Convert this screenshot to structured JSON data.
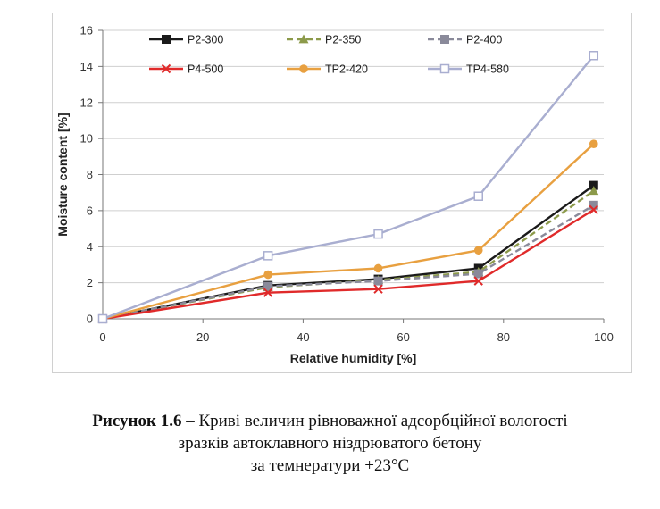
{
  "chart_data": {
    "type": "line",
    "xlabel": "Relative humidity [%]",
    "ylabel": "Moisture content [%]",
    "xlim": [
      0,
      100
    ],
    "ylim": [
      0,
      16
    ],
    "xticks": [
      0,
      20,
      40,
      60,
      80,
      100
    ],
    "yticks": [
      0,
      2,
      4,
      6,
      8,
      10,
      12,
      14,
      16
    ],
    "grid": "horizontal",
    "legend_position": "top",
    "series": [
      {
        "name": "P2-300",
        "color": "#1a1a1a",
        "marker": "filled-square",
        "dash": "solid",
        "x": [
          0,
          33,
          55,
          75,
          98
        ],
        "y": [
          0,
          1.85,
          2.2,
          2.8,
          7.4
        ]
      },
      {
        "name": "P2-350",
        "color": "#8c9a4a",
        "marker": "filled-triangle",
        "dash": "dashed",
        "x": [
          0,
          33,
          55,
          75,
          98
        ],
        "y": [
          0,
          1.75,
          2.15,
          2.6,
          7.1
        ]
      },
      {
        "name": "P2-400",
        "color": "#8a8a9a",
        "marker": "filled-square",
        "dash": "dashed",
        "x": [
          0,
          33,
          55,
          75,
          98
        ],
        "y": [
          0,
          1.8,
          2.1,
          2.5,
          6.3
        ]
      },
      {
        "name": "P4-500",
        "color": "#e02a2a",
        "marker": "x",
        "dash": "solid",
        "x": [
          0,
          33,
          55,
          75,
          98
        ],
        "y": [
          0,
          1.45,
          1.65,
          2.1,
          6.05
        ]
      },
      {
        "name": "TP2-420",
        "color": "#e8a040",
        "marker": "filled-circle",
        "dash": "solid",
        "x": [
          0,
          33,
          55,
          75,
          98
        ],
        "y": [
          0,
          2.45,
          2.8,
          3.8,
          9.7
        ]
      },
      {
        "name": "TP4-580",
        "color": "#a9aed0",
        "marker": "open-square",
        "dash": "solid",
        "x": [
          0,
          33,
          55,
          75,
          98
        ],
        "y": [
          0,
          3.5,
          4.7,
          6.8,
          14.6
        ]
      }
    ]
  },
  "caption": {
    "figure_number": "Рисунок 1.6",
    "line1": " – Криві величин рівноважної адсорбційної вологості",
    "line2": "зразків автоклавного ніздрюватого бетону",
    "line3": "за темнератури +23°С"
  }
}
